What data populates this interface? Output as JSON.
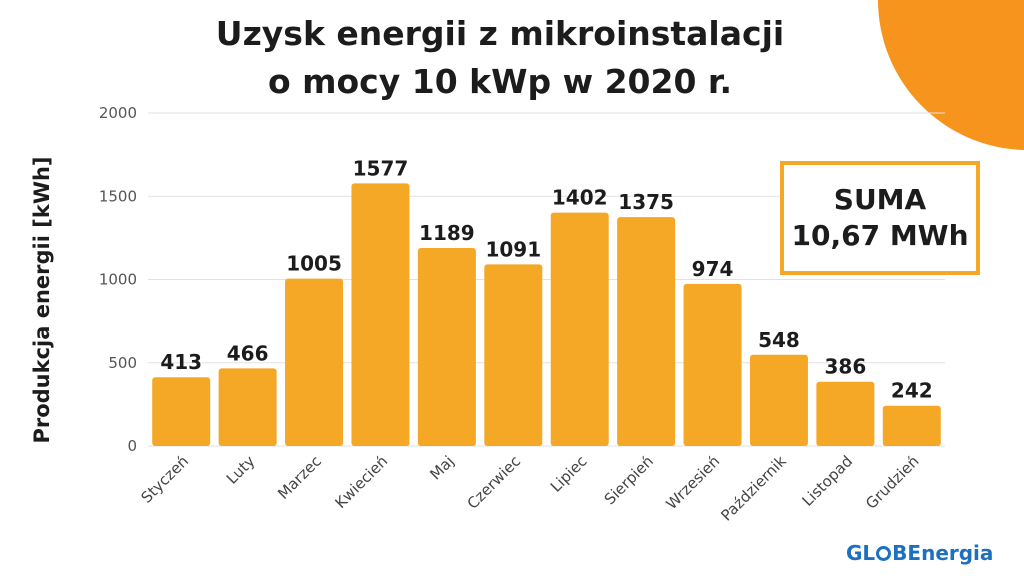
{
  "chart_data": {
    "type": "bar",
    "title_line1": "Uzysk energii z mikroinstalacji",
    "title_line2": "o mocy 10 kWp w 2020 r.",
    "xlabel": "",
    "ylabel": "Produkcja energii [kWh]",
    "ylim": [
      0,
      2000
    ],
    "yticks": [
      0,
      500,
      1000,
      1500,
      2000
    ],
    "grid": true,
    "categories": [
      "Styczeń",
      "Luty",
      "Marzec",
      "Kwiecień",
      "Maj",
      "Czerwiec",
      "Lipiec",
      "Sierpień",
      "Wrzesień",
      "Październik",
      "Listopad",
      "Grudzień"
    ],
    "values": [
      413,
      466,
      1005,
      1577,
      1189,
      1091,
      1402,
      1375,
      974,
      548,
      386,
      242
    ],
    "bar_color": "#f4a826"
  },
  "summary": {
    "line1": "SUMA",
    "line2": "10,67 MWh",
    "border_color": "#f4a826"
  },
  "logo": {
    "part1": "GL",
    "part2": "BEnergia",
    "color": "#1d6fc0"
  },
  "decoration": {
    "color": "#f7941d"
  }
}
